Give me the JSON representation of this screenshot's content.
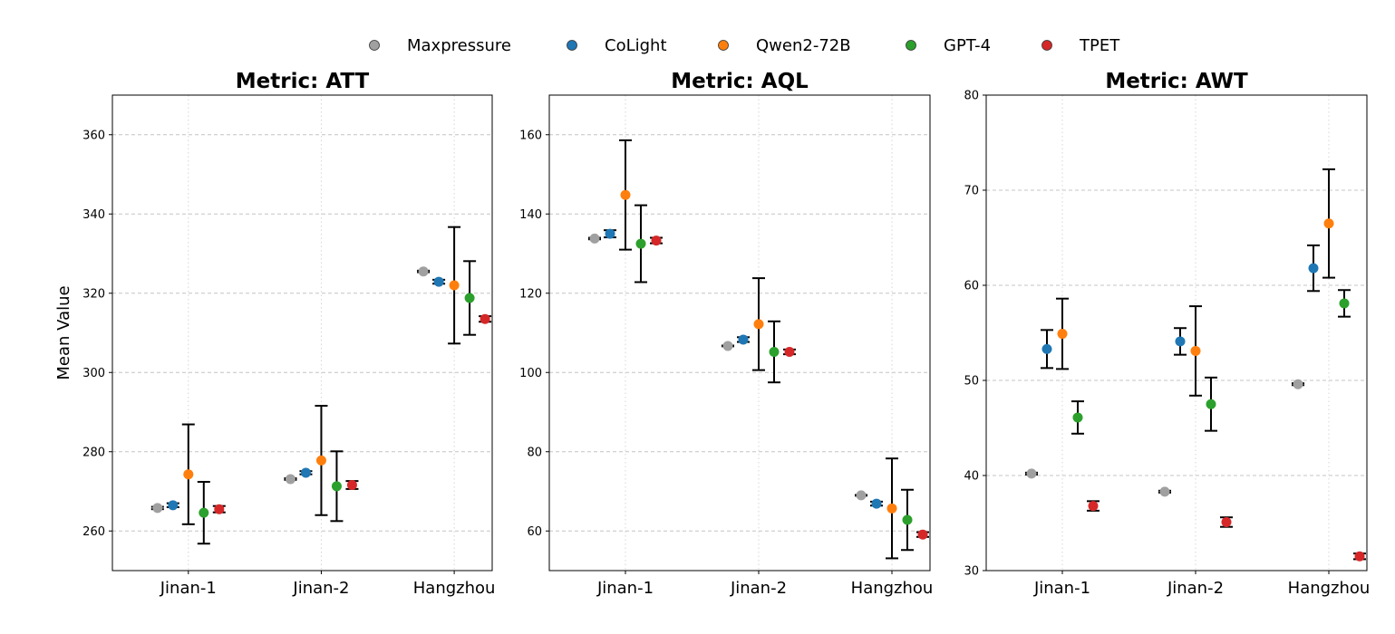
{
  "chart_data": {
    "type": "scatter",
    "subtype": "dot-with-error-bars",
    "ylabel": "Mean Value",
    "legend_position": "top-center",
    "series": [
      {
        "name": "Maxpressure",
        "color": "#a0a0a0"
      },
      {
        "name": "CoLight",
        "color": "#1f77b4"
      },
      {
        "name": "Qwen2-72B",
        "color": "#ff7f0e"
      },
      {
        "name": "GPT-4",
        "color": "#2ca02c"
      },
      {
        "name": "TPET",
        "color": "#d62728"
      }
    ],
    "categories": [
      "Jinan-1",
      "Jinan-2",
      "Hangzhou"
    ],
    "panels": [
      {
        "title": "Metric: ATT",
        "ylim": [
          250,
          370
        ],
        "yticks": [
          260,
          280,
          300,
          320,
          340,
          360
        ],
        "means": [
          [
            265.8,
            266.5,
            274.3,
            264.6,
            265.5
          ],
          [
            273.1,
            274.7,
            277.8,
            271.3,
            271.6
          ],
          [
            325.5,
            322.9,
            322.0,
            318.8,
            313.5
          ]
        ],
        "errors": [
          [
            0.3,
            0.5,
            12.6,
            7.8,
            0.8
          ],
          [
            0.2,
            0.4,
            13.8,
            8.8,
            1.0
          ],
          [
            0.2,
            0.5,
            14.7,
            9.3,
            0.7
          ]
        ]
      },
      {
        "title": "Metric: AQL",
        "ylim": [
          50,
          170
        ],
        "yticks": [
          60,
          80,
          100,
          120,
          140,
          160
        ],
        "means": [
          [
            133.8,
            135.0,
            144.8,
            132.5,
            133.3
          ],
          [
            106.7,
            108.3,
            112.2,
            105.2,
            105.2
          ],
          [
            69.0,
            66.9,
            65.7,
            62.8,
            59.1
          ]
        ],
        "errors": [
          [
            0.2,
            0.9,
            13.8,
            9.7,
            0.7
          ],
          [
            0.1,
            0.6,
            11.6,
            7.7,
            0.6
          ],
          [
            0.1,
            0.5,
            12.6,
            7.6,
            0.6
          ]
        ]
      },
      {
        "title": "Metric: AWT",
        "ylim": [
          30,
          80
        ],
        "yticks": [
          30,
          40,
          50,
          60,
          70,
          80
        ],
        "means": [
          [
            40.2,
            53.3,
            54.9,
            46.1,
            36.8
          ],
          [
            38.3,
            54.1,
            53.1,
            47.5,
            35.1
          ],
          [
            49.6,
            61.8,
            66.5,
            58.1,
            31.5
          ]
        ],
        "errors": [
          [
            0.1,
            2.0,
            3.7,
            1.7,
            0.5
          ],
          [
            0.1,
            1.4,
            4.7,
            2.8,
            0.5
          ],
          [
            0.1,
            2.4,
            5.7,
            1.4,
            0.3
          ]
        ]
      }
    ]
  }
}
